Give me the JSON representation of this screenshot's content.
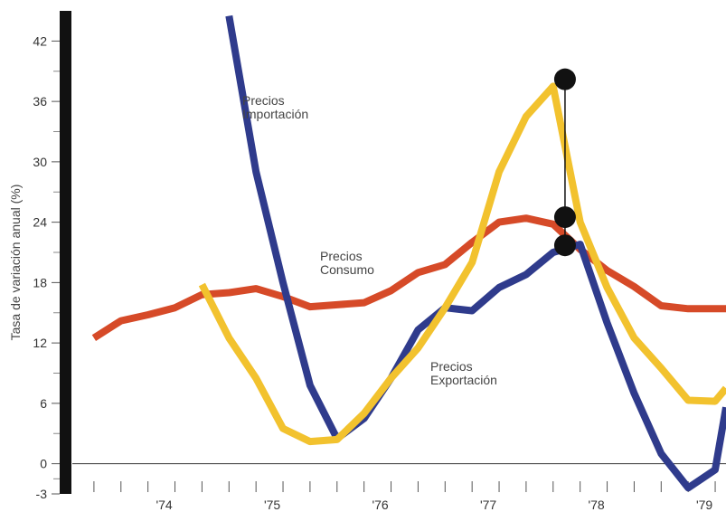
{
  "chart_data": {
    "type": "line",
    "title": "",
    "ylabel": "Tasa de variación anual (%)",
    "xlabel": "",
    "ylim": [
      -3,
      45
    ],
    "xlim": [
      1973.3,
      1979.35
    ],
    "yticks": [
      -3,
      0,
      6,
      12,
      18,
      24,
      30,
      36,
      42
    ],
    "yticks_labels": [
      "-3",
      "0",
      "6",
      "12",
      "18",
      "24",
      "30",
      "36",
      "42"
    ],
    "xticks": [
      {
        "label": "'74",
        "x": 1974.0
      },
      {
        "label": "'75",
        "x": 1975.0
      },
      {
        "label": "'76",
        "x": 1976.0
      },
      {
        "label": "'77",
        "x": 1977.0
      },
      {
        "label": "'78",
        "x": 1978.0
      },
      {
        "label": "'79",
        "x": 1979.0
      }
    ],
    "grid": false,
    "colors": {
      "axis": "#111111",
      "precios_importacion": "#2f3b8c",
      "precios_consumo": "#d64a28",
      "precios_exportacion": "#f2c22e",
      "marker": "#111111"
    },
    "series": [
      {
        "name": "Precios Consumo",
        "label_lines": [
          "Precios",
          "Consumo"
        ],
        "color_key": "precios_consumo",
        "x": [
          1973.5,
          1973.75,
          1974.0,
          1974.25,
          1974.5,
          1974.75,
          1975.0,
          1975.25,
          1975.5,
          1975.75,
          1976.0,
          1976.25,
          1976.5,
          1976.75,
          1977.0,
          1977.25,
          1977.5,
          1977.75,
          1978.0,
          1978.25,
          1978.5,
          1978.75,
          1979.0,
          1979.25,
          1979.35
        ],
        "values": [
          12.5,
          14.2,
          14.8,
          15.5,
          16.8,
          17.0,
          17.4,
          16.6,
          15.6,
          15.8,
          16.0,
          17.2,
          19.0,
          19.8,
          22.0,
          24.0,
          24.4,
          23.8,
          21.3,
          19.2,
          17.6,
          15.7,
          15.4,
          15.4,
          15.4
        ]
      },
      {
        "name": "Precios Importación",
        "label_lines": [
          "Precios",
          "Importación"
        ],
        "color_key": "precios_importacion",
        "x": [
          1974.75,
          1975.0,
          1975.25,
          1975.5,
          1975.75,
          1976.0,
          1976.25,
          1976.5,
          1976.75,
          1977.0,
          1977.25,
          1977.5,
          1977.75,
          1978.0,
          1978.25,
          1978.5,
          1978.75,
          1979.0,
          1979.25,
          1979.35
        ],
        "values": [
          44.5,
          29.0,
          18.0,
          7.8,
          2.5,
          4.5,
          8.5,
          13.3,
          15.5,
          15.2,
          17.5,
          18.8,
          21.0,
          21.8,
          14.0,
          7.0,
          1.0,
          -2.4,
          -0.6,
          5.6
        ]
      },
      {
        "name": "Precios Exportación",
        "label_lines": [
          "Precios",
          "Exportación"
        ],
        "color_key": "precios_exportacion",
        "x": [
          1974.5,
          1974.75,
          1975.0,
          1975.25,
          1975.5,
          1975.75,
          1976.0,
          1976.25,
          1976.5,
          1976.75,
          1977.0,
          1977.25,
          1977.5,
          1977.75,
          1978.0,
          1978.25,
          1978.5,
          1978.75,
          1979.0,
          1979.25,
          1979.35
        ],
        "values": [
          17.8,
          12.5,
          8.5,
          3.5,
          2.2,
          2.4,
          5.0,
          8.5,
          11.5,
          15.5,
          20.0,
          29.0,
          34.5,
          37.5,
          24.0,
          17.5,
          12.5,
          9.5,
          6.3,
          6.2,
          7.5
        ]
      }
    ],
    "markers": [
      {
        "x": 1977.86,
        "y": 38.2
      },
      {
        "x": 1977.86,
        "y": 24.5
      },
      {
        "x": 1977.86,
        "y": 21.7
      }
    ]
  }
}
